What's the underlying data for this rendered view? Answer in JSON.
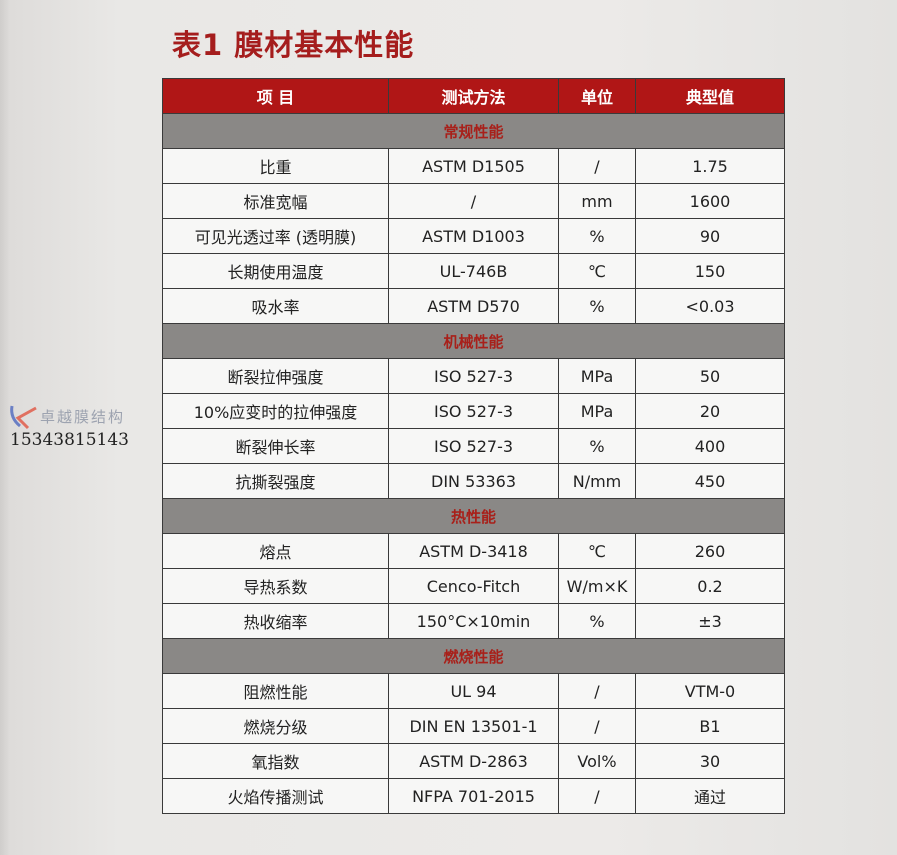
{
  "title": "表1 膜材基本性能",
  "headers": [
    "项 目",
    "测试方法",
    "单位",
    "典型值"
  ],
  "sections": [
    {
      "name": "常规性能",
      "rows": [
        [
          "比重",
          "ASTM D1505",
          "/",
          "1.75"
        ],
        [
          "标准宽幅",
          "/",
          "mm",
          "1600"
        ],
        [
          "可见光透过率 (透明膜)",
          "ASTM D1003",
          "%",
          "90"
        ],
        [
          "长期使用温度",
          "UL-746B",
          "℃",
          "150"
        ],
        [
          "吸水率",
          "ASTM D570",
          "%",
          "<0.03"
        ]
      ]
    },
    {
      "name": "机械性能",
      "rows": [
        [
          "断裂拉伸强度",
          "ISO 527-3",
          "MPa",
          "50"
        ],
        [
          "10%应变时的拉伸强度",
          "ISO 527-3",
          "MPa",
          "20"
        ],
        [
          "断裂伸长率",
          "ISO 527-3",
          "%",
          "400"
        ],
        [
          "抗撕裂强度",
          "DIN 53363",
          "N/mm",
          "450"
        ]
      ]
    },
    {
      "name": "热性能",
      "rows": [
        [
          "熔点",
          "ASTM D-3418",
          "℃",
          "260"
        ],
        [
          "导热系数",
          "Cenco-Fitch",
          "W/m×K",
          "0.2"
        ],
        [
          "热收缩率",
          "150°C×10min",
          "%",
          "±3"
        ]
      ]
    },
    {
      "name": "燃烧性能",
      "rows": [
        [
          "阻燃性能",
          "UL 94",
          "/",
          "VTM-0"
        ],
        [
          "燃烧分级",
          "DIN EN 13501-1",
          "/",
          "B1"
        ],
        [
          "氧指数",
          "ASTM D-2863",
          "Vol%",
          "30"
        ],
        [
          "火焰传播测试",
          "NFPA 701-2015",
          "/",
          "通过"
        ]
      ]
    }
  ],
  "watermark": {
    "company": "卓越膜结构",
    "phone": "15343815143"
  },
  "colors": {
    "title": "#a51d1d",
    "header_bg": "#b01616",
    "section_bg": "#8a8886",
    "section_text": "#a8201a"
  }
}
